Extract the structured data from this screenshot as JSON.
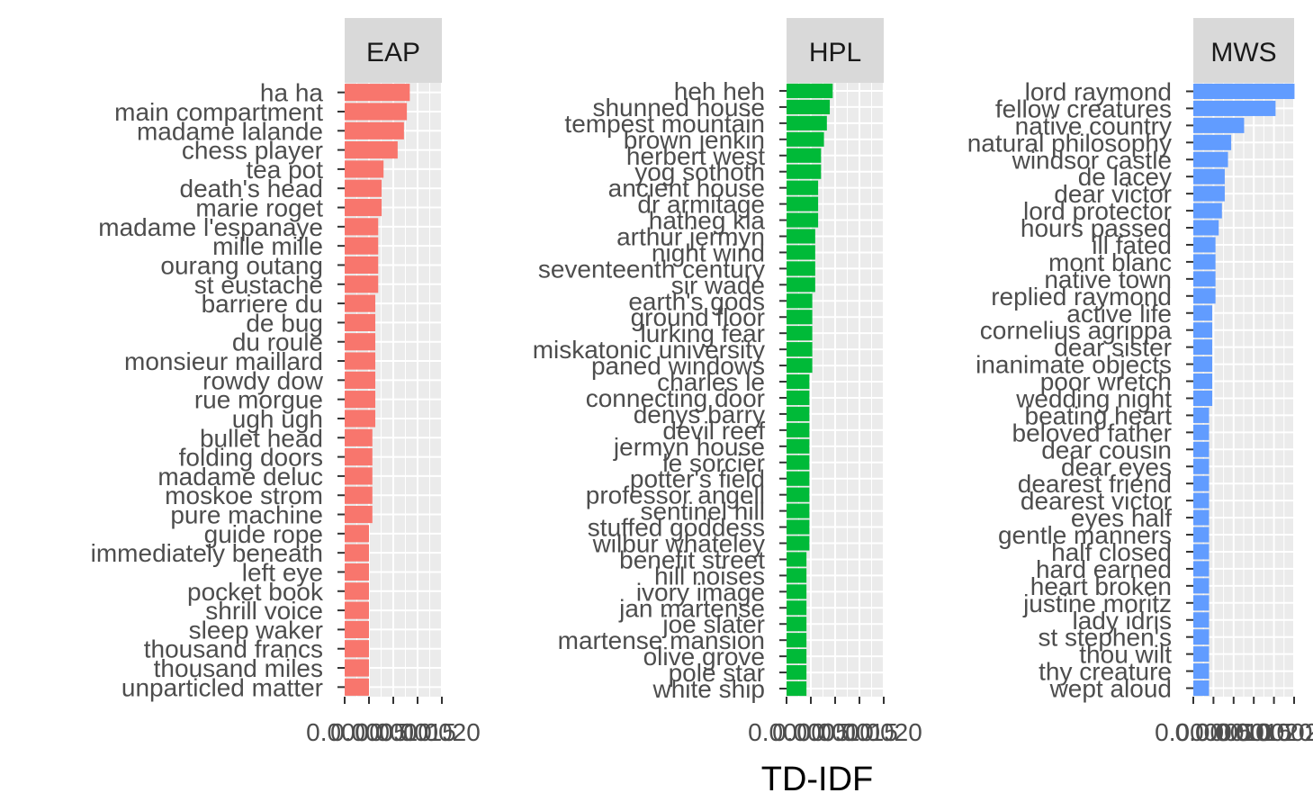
{
  "chart_data": {
    "type": "bar",
    "orientation": "horizontal",
    "layout": "facets",
    "xlabel": "TD-IDF",
    "ylabel": "",
    "grid": true,
    "legend": "none",
    "facets": [
      {
        "name": "EAP",
        "color": "#F8766D",
        "xlim": [
          0,
          0.002
        ],
        "ticks": [
          0,
          0.0005,
          0.001,
          0.0015,
          0.002
        ],
        "tick_labels": [
          "0.0000",
          "0.0005",
          "0.0010",
          "0.0015",
          "0.0020"
        ],
        "categories": [
          "ha ha",
          "main compartment",
          "madame lalande",
          "chess player",
          "tea pot",
          "death's head",
          "marie roget",
          "madame l'espanaye",
          "mille mille",
          "ourang outang",
          "st eustache",
          "barriere du",
          "de bug",
          "du roule",
          "monsieur maillard",
          "rowdy dow",
          "rue morgue",
          "ugh ugh",
          "bullet head",
          "folding doors",
          "madame deluc",
          "moskoe strom",
          "pure machine",
          "guide rope",
          "immediately beneath",
          "left eye",
          "pocket book",
          "shrill voice",
          "sleep waker",
          "thousand francs",
          "thousand miles",
          "unparticled matter"
        ],
        "values": [
          0.00134,
          0.00128,
          0.00122,
          0.00109,
          0.0008,
          0.00076,
          0.00076,
          0.00069,
          0.00069,
          0.00069,
          0.00069,
          0.00063,
          0.00063,
          0.00063,
          0.00063,
          0.00063,
          0.00063,
          0.00063,
          0.00057,
          0.00057,
          0.00057,
          0.00057,
          0.00057,
          0.0005,
          0.0005,
          0.0005,
          0.0005,
          0.0005,
          0.0005,
          0.0005,
          0.0005,
          0.0005
        ]
      },
      {
        "name": "HPL",
        "color": "#00BA38",
        "xlim": [
          0,
          0.002
        ],
        "ticks": [
          0,
          0.0005,
          0.001,
          0.0015,
          0.002
        ],
        "tick_labels": [
          "0.0000",
          "0.0005",
          "0.0010",
          "0.0015",
          "0.0020"
        ],
        "categories": [
          "heh heh",
          "shunned house",
          "tempest mountain",
          "brown jenkin",
          "herbert west",
          "yog sothoth",
          "ancient house",
          "dr armitage",
          "hatheg kla",
          "arthur jermyn",
          "night wind",
          "seventeenth century",
          "sir wade",
          "earth's gods",
          "ground floor",
          "lurking fear",
          "miskatonic university",
          "paned windows",
          "charles le",
          "connecting door",
          "denys barry",
          "devil reef",
          "jermyn house",
          "le sorcier",
          "potter's field",
          "professor angell",
          "sentinel hill",
          "stuffed goddess",
          "wilbur whateley",
          "benefit street",
          "hill noises",
          "ivory image",
          "jan martense",
          "joe slater",
          "martense mansion",
          "olive grove",
          "pole star",
          "white ship"
        ],
        "values": [
          0.00095,
          0.00089,
          0.00083,
          0.00077,
          0.00071,
          0.00071,
          0.00065,
          0.00065,
          0.00065,
          0.00059,
          0.00059,
          0.00059,
          0.00059,
          0.00053,
          0.00053,
          0.00053,
          0.00053,
          0.00053,
          0.00047,
          0.00047,
          0.00047,
          0.00047,
          0.00047,
          0.00047,
          0.00047,
          0.00047,
          0.00047,
          0.00047,
          0.00047,
          0.00041,
          0.00041,
          0.00041,
          0.00041,
          0.00041,
          0.00041,
          0.00041,
          0.00041,
          0.00041
        ]
      },
      {
        "name": "MWS",
        "color": "#619CFF",
        "xlim": [
          0,
          0.0025
        ],
        "ticks": [
          0,
          0.0005,
          0.001,
          0.0015,
          0.002,
          0.0025
        ],
        "tick_labels": [
          "0.0000",
          "0.0005",
          "0.0010",
          "0.0015",
          "0.0020",
          "0.0025"
        ],
        "categories": [
          "lord raymond",
          "fellow creatures",
          "native country",
          "natural philosophy",
          "windsor castle",
          "de lacey",
          "dear victor",
          "lord protector",
          "hours passed",
          "ill fated",
          "mont blanc",
          "native town",
          "replied raymond",
          "active life",
          "cornelius agrippa",
          "dear sister",
          "inanimate objects",
          "poor wretch",
          "wedding night",
          "beating heart",
          "beloved father",
          "dear cousin",
          "dear eyes",
          "dearest friend",
          "dearest victor",
          "eyes half",
          "gentle manners",
          "half closed",
          "hard earned",
          "heart broken",
          "justine moritz",
          "lady idris",
          "st stephen's",
          "thou wilt",
          "thy creature",
          "wept aloud"
        ],
        "values": [
          0.00251,
          0.00204,
          0.00126,
          0.00094,
          0.00086,
          0.00078,
          0.00078,
          0.00071,
          0.00063,
          0.00055,
          0.00055,
          0.00055,
          0.00055,
          0.00047,
          0.00047,
          0.00047,
          0.00047,
          0.00047,
          0.00047,
          0.00039,
          0.00039,
          0.00039,
          0.00039,
          0.00039,
          0.00039,
          0.00039,
          0.00039,
          0.00039,
          0.00039,
          0.00039,
          0.00039,
          0.00039,
          0.00039,
          0.00039,
          0.00039,
          0.00039
        ]
      }
    ]
  }
}
